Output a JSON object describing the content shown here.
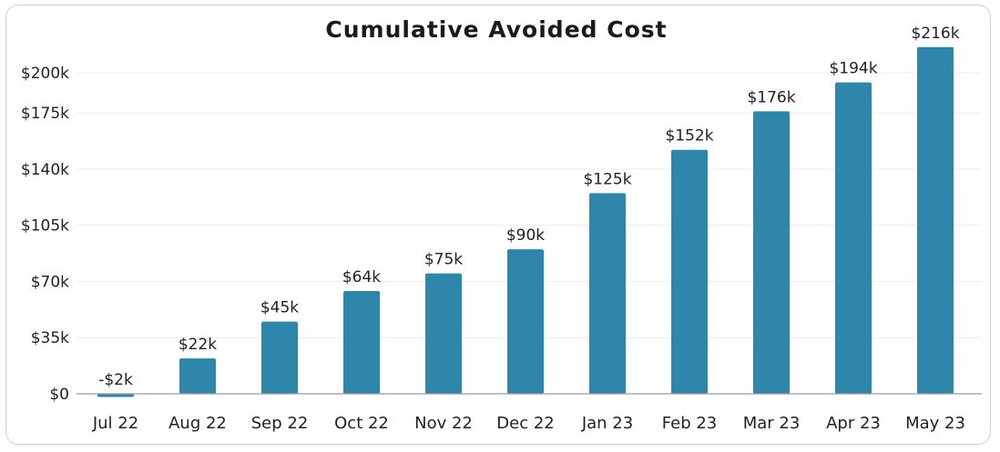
{
  "chart_data": {
    "type": "bar",
    "title": "Cumulative Avoided Cost",
    "xlabel": "",
    "ylabel": "",
    "categories": [
      "Jul 22",
      "Aug 22",
      "Sep 22",
      "Oct 22",
      "Nov 22",
      "Dec 22",
      "Jan 23",
      "Feb 23",
      "Mar 23",
      "Apr 23",
      "May 23"
    ],
    "values": [
      -2,
      22,
      45,
      64,
      75,
      90,
      125,
      152,
      176,
      194,
      216
    ],
    "value_labels": [
      "-$2k",
      "$22k",
      "$45k",
      "$64k",
      "$75k",
      "$90k",
      "$125k",
      "$152k",
      "$176k",
      "$194k",
      "$216k"
    ],
    "y_ticks": [
      0,
      35,
      70,
      105,
      140,
      175,
      200
    ],
    "y_tick_labels": [
      "$0",
      "$35k",
      "$70k",
      "$105k",
      "$140k",
      "$175k",
      "$200k"
    ],
    "ylim": [
      -2,
      222
    ],
    "grid": true,
    "legend": "none",
    "colors": {
      "bar": "#2e86ab",
      "grid": "#ececec",
      "text": "#222222"
    }
  }
}
